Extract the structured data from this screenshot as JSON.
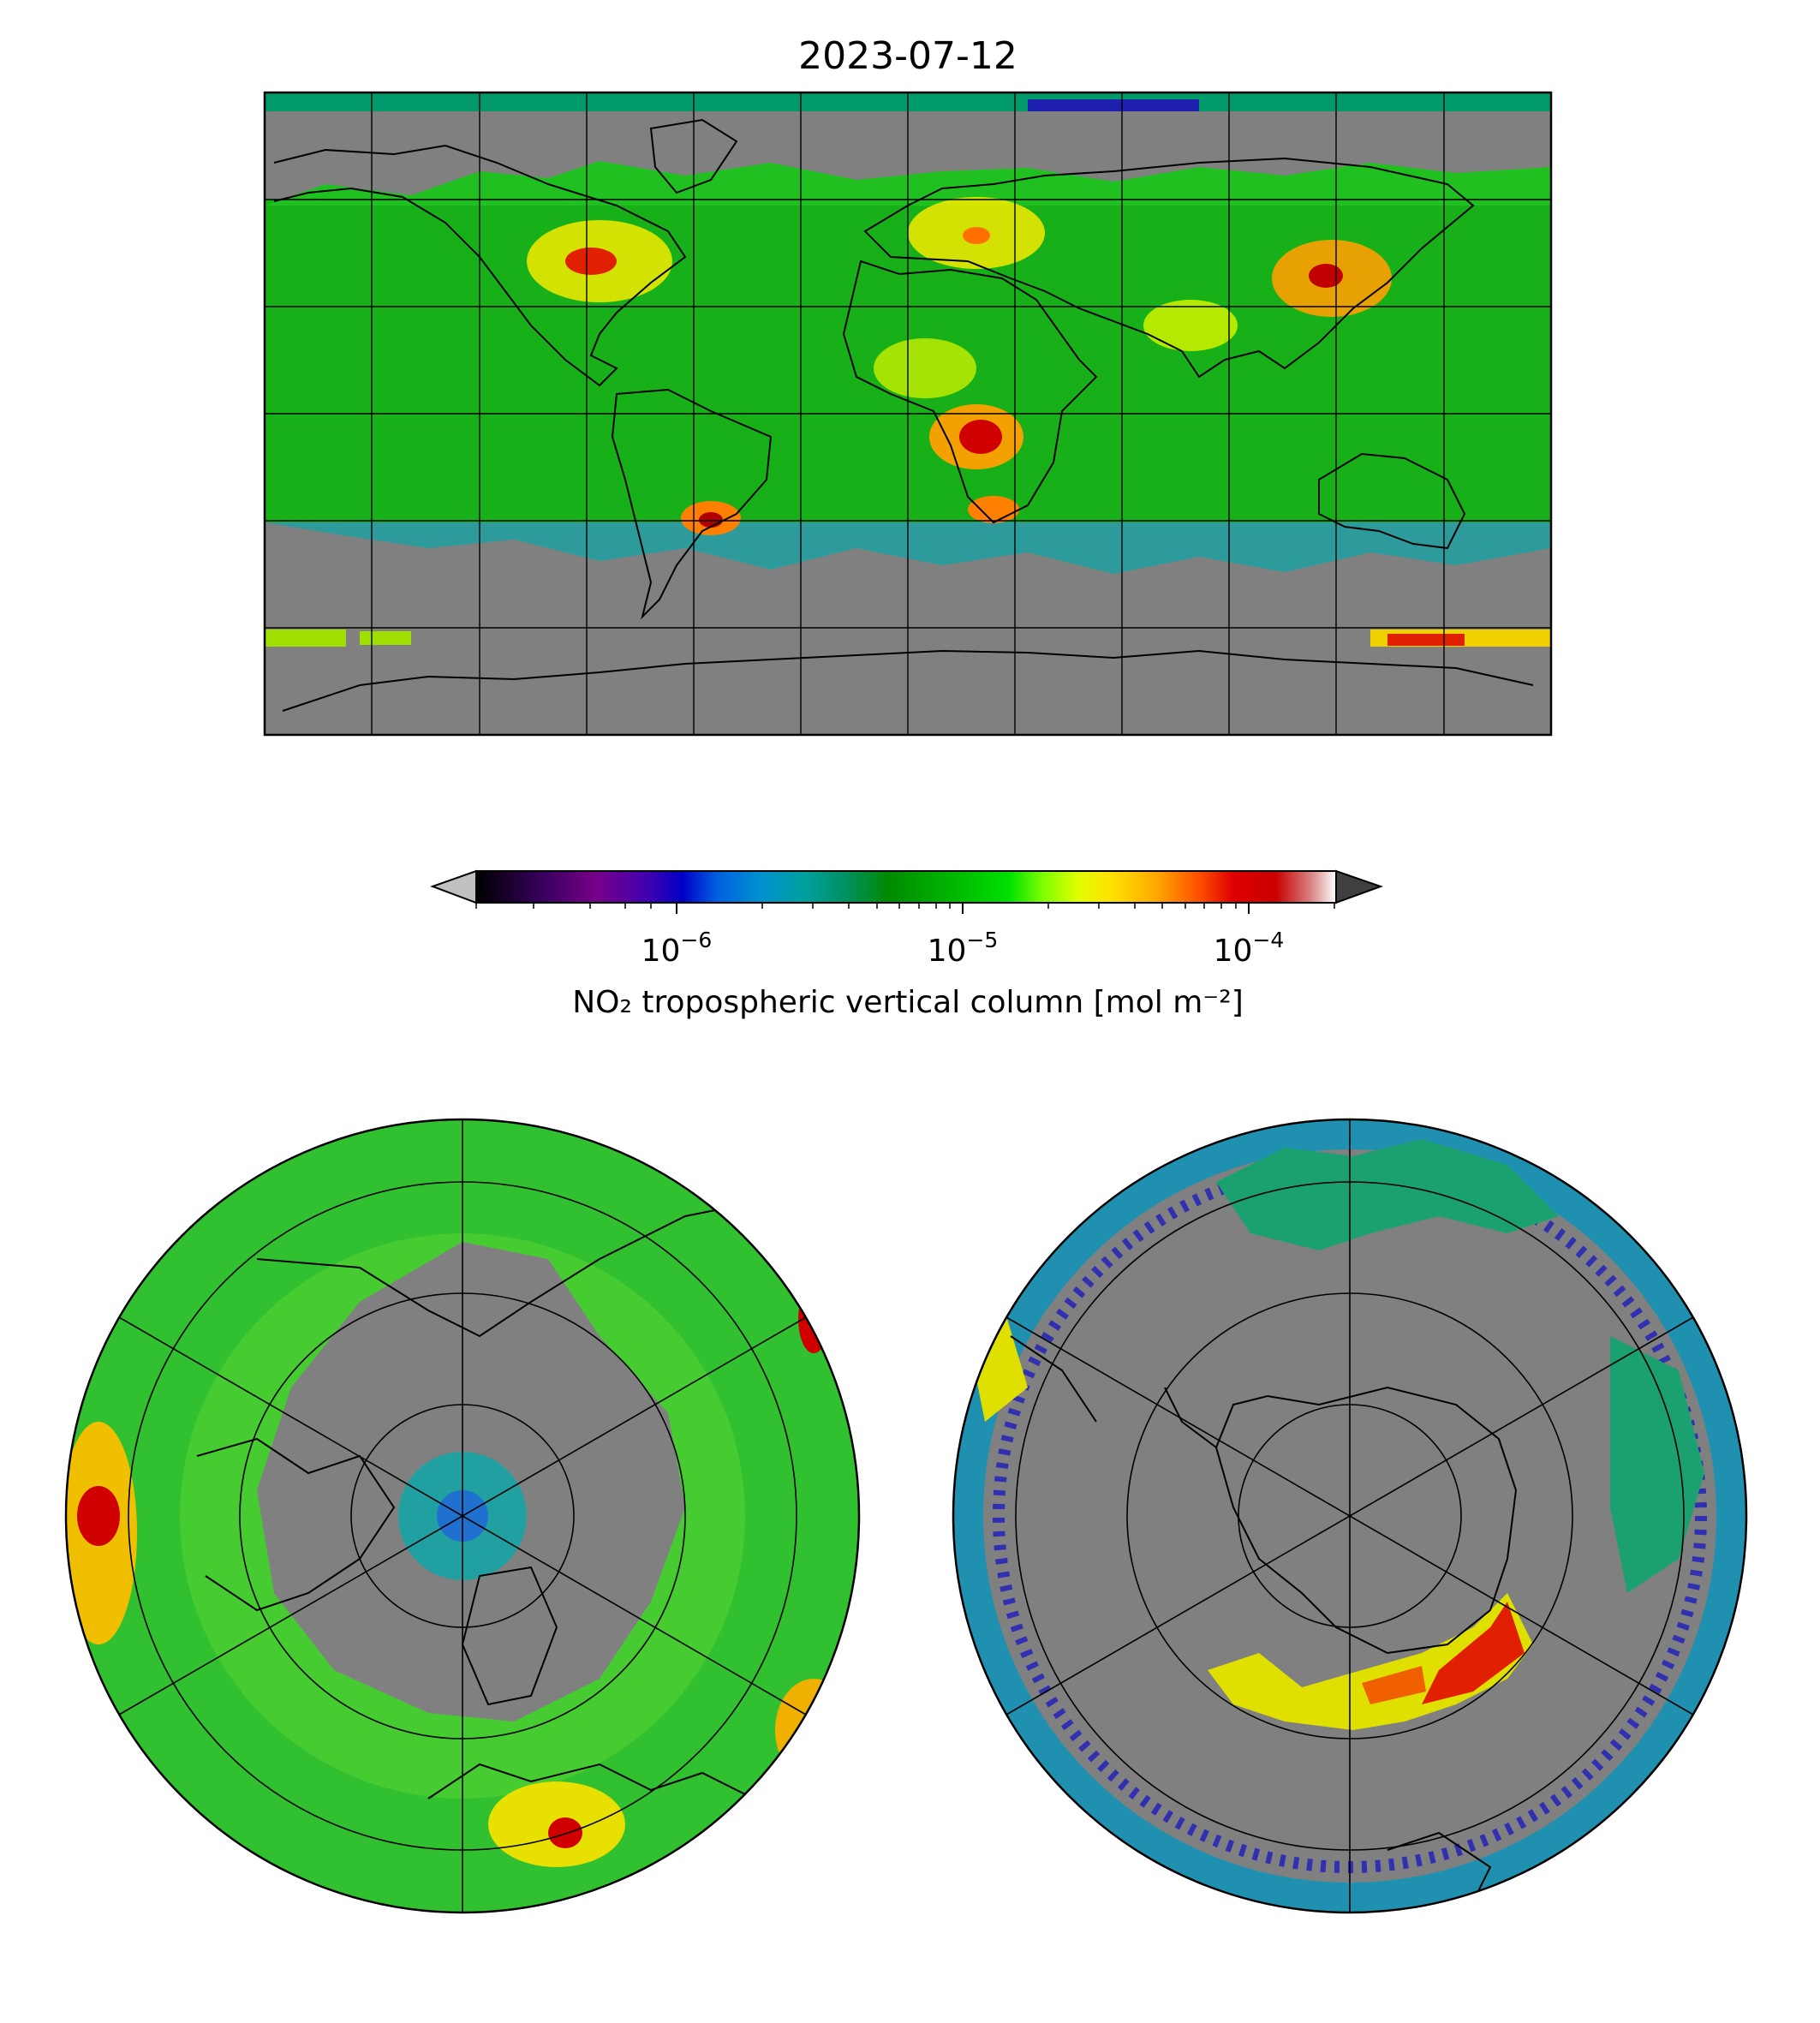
{
  "figure": {
    "title": "2023-07-12"
  },
  "colorbar": {
    "label": "NO₂ tropospheric vertical column [mol m⁻²]",
    "scale": "log",
    "range": [
      2e-07,
      0.0002
    ],
    "extend": "both",
    "ticks": [
      {
        "base": "10",
        "exp": "−6",
        "value": 1e-06
      },
      {
        "base": "10",
        "exp": "−5",
        "value": 1e-05
      },
      {
        "base": "10",
        "exp": "−4",
        "value": 0.0001
      }
    ],
    "colormap": [
      "#000000",
      "#3a0060",
      "#78008a",
      "#3f00b0",
      "#0000c8",
      "#0060e0",
      "#0090d0",
      "#00a0a0",
      "#009060",
      "#008a00",
      "#00b400",
      "#00e000",
      "#80ff00",
      "#e0ff00",
      "#ffe000",
      "#ffaa00",
      "#ff5000",
      "#e00000",
      "#c80000",
      "#d88080",
      "#ffffff"
    ],
    "under_color": "#c0c0c0",
    "over_color": "#404040"
  },
  "maps": {
    "global": {
      "projection": "plate-carree",
      "graticule_step_deg": 30,
      "missing_color": "#808080"
    },
    "north_polar": {
      "projection": "north-polar-stereographic",
      "missing_color": "#808080"
    },
    "south_polar": {
      "projection": "south-polar-stereographic",
      "missing_color": "#808080"
    }
  }
}
